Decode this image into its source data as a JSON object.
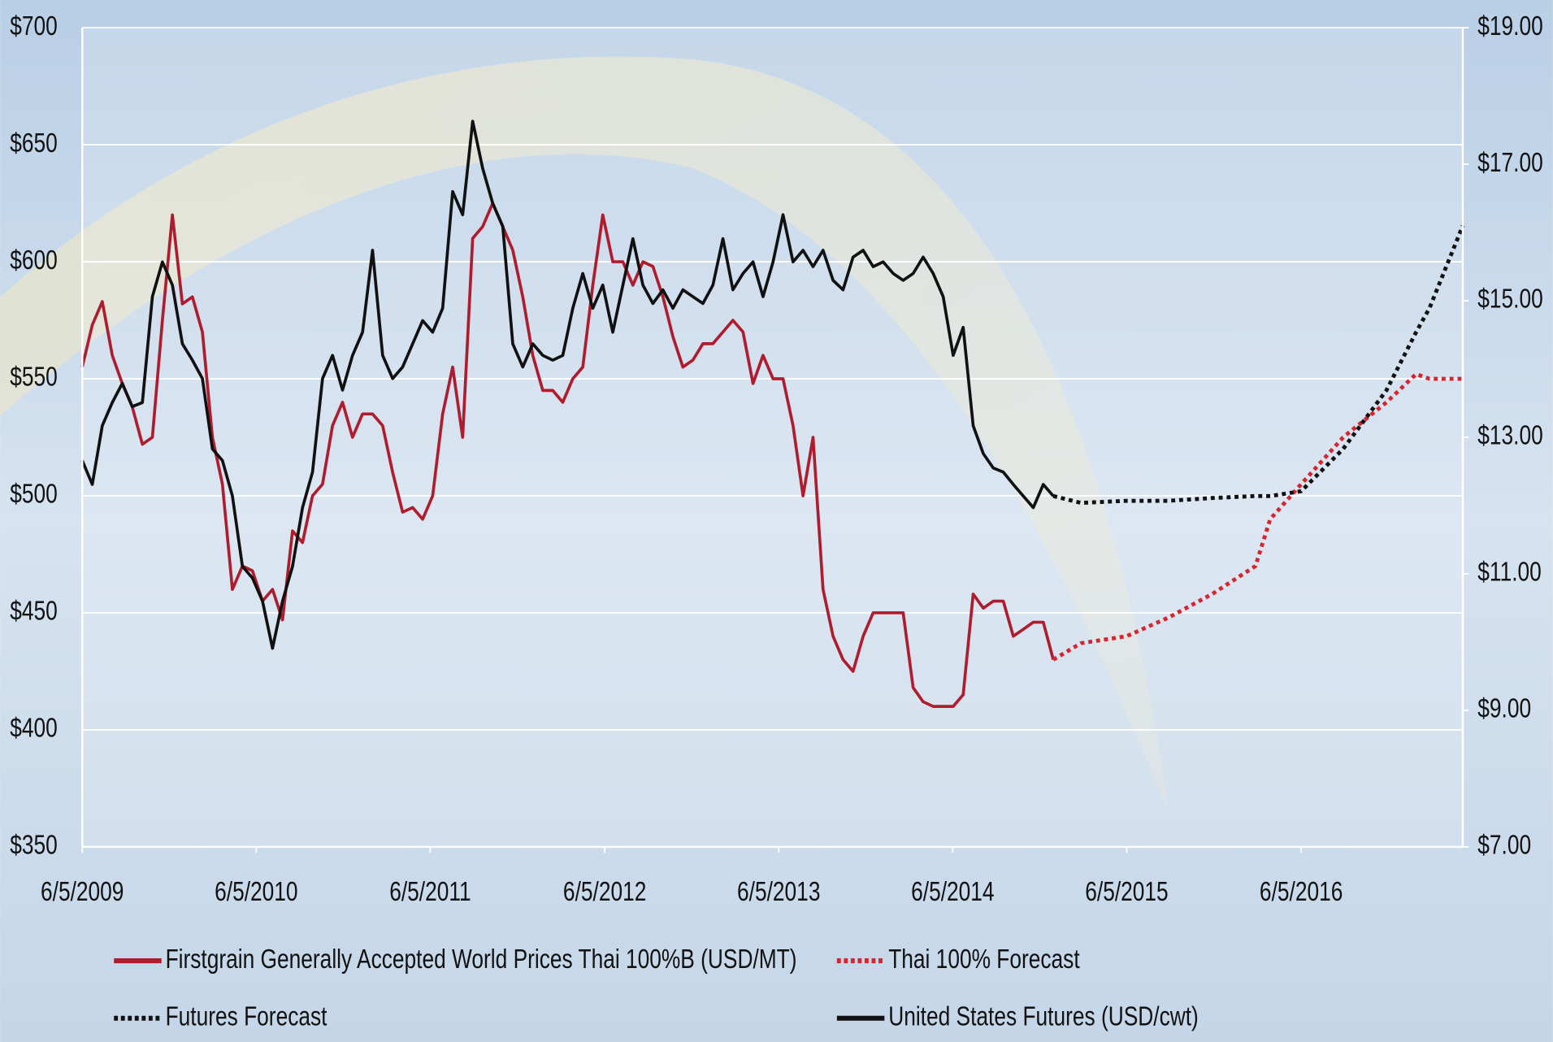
{
  "chart_data": {
    "type": "line",
    "xlim": [
      "2009-06-05",
      "2017-05-10"
    ],
    "xticks": [
      {
        "value": "2009-06-05",
        "label": "6/5/2009"
      },
      {
        "value": "2010-06-05",
        "label": "6/5/2010"
      },
      {
        "value": "2011-06-05",
        "label": "6/5/2011"
      },
      {
        "value": "2012-06-05",
        "label": "6/5/2012"
      },
      {
        "value": "2013-06-05",
        "label": "6/5/2013"
      },
      {
        "value": "2014-06-05",
        "label": "6/5/2014"
      },
      {
        "value": "2015-06-05",
        "label": "6/5/2015"
      },
      {
        "value": "2016-06-05",
        "label": "6/5/2016"
      }
    ],
    "ylim": [
      350,
      700
    ],
    "yticks": [
      {
        "value": 350,
        "label": "$350"
      },
      {
        "value": 400,
        "label": "$400"
      },
      {
        "value": 450,
        "label": "$450"
      },
      {
        "value": 500,
        "label": "$500"
      },
      {
        "value": 550,
        "label": "$550"
      },
      {
        "value": 600,
        "label": "$600"
      },
      {
        "value": 650,
        "label": "$650"
      },
      {
        "value": 700,
        "label": "$700"
      }
    ],
    "y2lim": [
      7,
      19
    ],
    "y2ticks": [
      {
        "value": 7,
        "label": "$7.00"
      },
      {
        "value": 9,
        "label": "$9.00"
      },
      {
        "value": 11,
        "label": "$11.00"
      },
      {
        "value": 13,
        "label": "$13.00"
      },
      {
        "value": 15,
        "label": "$15.00"
      },
      {
        "value": 17,
        "label": "$17.00"
      },
      {
        "value": 19,
        "label": "$19.00"
      }
    ],
    "grid": true,
    "legend": "bottom",
    "series": [
      {
        "name": "Firstgrain Generally Accepted World Prices Thai 100%B (USD/MT)",
        "color": "#b01c2e",
        "style": "solid",
        "axis": "y",
        "x": [
          "2009-06-05",
          "2009-06-26",
          "2009-07-17",
          "2009-08-07",
          "2009-08-28",
          "2009-09-18",
          "2009-10-09",
          "2009-10-30",
          "2009-11-20",
          "2009-12-11",
          "2010-01-01",
          "2010-01-22",
          "2010-02-12",
          "2010-03-05",
          "2010-03-26",
          "2010-04-16",
          "2010-05-07",
          "2010-05-28",
          "2010-06-18",
          "2010-07-09",
          "2010-07-30",
          "2010-08-20",
          "2010-09-10",
          "2010-10-01",
          "2010-10-22",
          "2010-11-12",
          "2010-12-03",
          "2010-12-24",
          "2011-01-14",
          "2011-02-04",
          "2011-02-25",
          "2011-03-18",
          "2011-04-08",
          "2011-04-29",
          "2011-05-20",
          "2011-06-10",
          "2011-07-01",
          "2011-07-22",
          "2011-08-12",
          "2011-09-02",
          "2011-09-23",
          "2011-10-14",
          "2011-11-04",
          "2011-11-25",
          "2011-12-16",
          "2012-01-06",
          "2012-01-27",
          "2012-02-17",
          "2012-03-09",
          "2012-03-30",
          "2012-04-20",
          "2012-05-11",
          "2012-06-01",
          "2012-06-22",
          "2012-07-13",
          "2012-08-03",
          "2012-08-24",
          "2012-09-14",
          "2012-10-05",
          "2012-10-26",
          "2012-11-16",
          "2012-12-07",
          "2012-12-28",
          "2013-01-18",
          "2013-02-08",
          "2013-03-01",
          "2013-03-22",
          "2013-04-12",
          "2013-05-03",
          "2013-05-24",
          "2013-06-14",
          "2013-07-05",
          "2013-07-26",
          "2013-08-16",
          "2013-09-06",
          "2013-09-27",
          "2013-10-18",
          "2013-11-08",
          "2013-11-29",
          "2013-12-20",
          "2014-01-10",
          "2014-01-31",
          "2014-02-21",
          "2014-03-14",
          "2014-04-04",
          "2014-04-25",
          "2014-05-16",
          "2014-06-06",
          "2014-06-27",
          "2014-07-18",
          "2014-08-08",
          "2014-08-29",
          "2014-09-19",
          "2014-10-10",
          "2014-10-31",
          "2014-11-21",
          "2014-12-12",
          "2015-01-02"
        ],
        "values": [
          555,
          573,
          583,
          560,
          548,
          538,
          522,
          525,
          575,
          620,
          582,
          585,
          570,
          525,
          505,
          460,
          470,
          468,
          455,
          460,
          447,
          485,
          480,
          500,
          505,
          530,
          540,
          525,
          535,
          535,
          530,
          510,
          493,
          495,
          490,
          500,
          535,
          555,
          525,
          610,
          615,
          625,
          615,
          605,
          585,
          560,
          545,
          545,
          540,
          550,
          555,
          590,
          620,
          600,
          600,
          590,
          600,
          598,
          585,
          568,
          555,
          558,
          565,
          565,
          570,
          575,
          570,
          548,
          560,
          550,
          550,
          530,
          500,
          525,
          460,
          440,
          430,
          425,
          440,
          450,
          450,
          450,
          450,
          418,
          412,
          410,
          410,
          410,
          415,
          458,
          452,
          455,
          455,
          440,
          443,
          446,
          446,
          430
        ]
      },
      {
        "name": "Thai 100% Forecast",
        "color": "#d8242f",
        "style": "dotted",
        "axis": "y",
        "x": [
          "2015-01-02",
          "2015-03-01",
          "2015-06-05",
          "2015-09-01",
          "2015-12-01",
          "2016-03-01",
          "2016-04-01",
          "2016-06-05",
          "2016-09-01",
          "2016-12-01",
          "2017-02-01",
          "2017-03-01",
          "2017-05-10"
        ],
        "values": [
          430,
          437,
          440,
          448,
          458,
          470,
          490,
          505,
          525,
          540,
          552,
          550,
          550
        ]
      },
      {
        "name": "Futures Forecast",
        "color": "#111111",
        "style": "dotted",
        "axis": "y2",
        "x": [
          "2015-01-02",
          "2015-03-01",
          "2015-06-05",
          "2015-09-01",
          "2015-12-01",
          "2016-03-01",
          "2016-04-01",
          "2016-06-05",
          "2016-09-01",
          "2016-12-01",
          "2017-02-01",
          "2017-03-01",
          "2017-05-10"
        ],
        "values": [
          12.14,
          12.04,
          12.07,
          12.07,
          12.11,
          12.14,
          12.14,
          12.21,
          12.83,
          13.69,
          14.54,
          14.89,
          16.1
        ]
      },
      {
        "name": "United States Futures (USD/cwt)",
        "color": "#111111",
        "style": "solid",
        "axis": "y2",
        "x": [
          "2009-06-05",
          "2009-06-26",
          "2009-07-17",
          "2009-08-07",
          "2009-08-28",
          "2009-09-18",
          "2009-10-09",
          "2009-10-30",
          "2009-11-20",
          "2009-12-11",
          "2010-01-01",
          "2010-01-22",
          "2010-02-12",
          "2010-03-05",
          "2010-03-26",
          "2010-04-16",
          "2010-05-07",
          "2010-05-28",
          "2010-06-18",
          "2010-07-09",
          "2010-07-30",
          "2010-08-20",
          "2010-09-10",
          "2010-10-01",
          "2010-10-22",
          "2010-11-12",
          "2010-12-03",
          "2010-12-24",
          "2011-01-14",
          "2011-02-04",
          "2011-02-25",
          "2011-03-18",
          "2011-04-08",
          "2011-04-29",
          "2011-05-20",
          "2011-06-10",
          "2011-07-01",
          "2011-07-22",
          "2011-08-12",
          "2011-09-02",
          "2011-09-23",
          "2011-10-14",
          "2011-11-04",
          "2011-11-25",
          "2011-12-16",
          "2012-01-06",
          "2012-01-27",
          "2012-02-17",
          "2012-03-09",
          "2012-03-30",
          "2012-04-20",
          "2012-05-11",
          "2012-06-01",
          "2012-06-22",
          "2012-07-13",
          "2012-08-03",
          "2012-08-24",
          "2012-09-14",
          "2012-10-05",
          "2012-10-26",
          "2012-11-16",
          "2012-12-07",
          "2012-12-28",
          "2013-01-18",
          "2013-02-08",
          "2013-03-01",
          "2013-03-22",
          "2013-04-12",
          "2013-05-03",
          "2013-05-24",
          "2013-06-14",
          "2013-07-05",
          "2013-07-26",
          "2013-08-16",
          "2013-09-06",
          "2013-09-27",
          "2013-10-18",
          "2013-11-08",
          "2013-11-29",
          "2013-12-20",
          "2014-01-10",
          "2014-01-31",
          "2014-02-21",
          "2014-03-14",
          "2014-04-04",
          "2014-04-25",
          "2014-05-16",
          "2014-06-06",
          "2014-06-27",
          "2014-07-18",
          "2014-08-08",
          "2014-08-29",
          "2014-09-19",
          "2014-10-10",
          "2014-10-31",
          "2014-11-21",
          "2014-12-12",
          "2015-01-02"
        ],
        "values": [
          12.66,
          12.31,
          13.17,
          13.51,
          13.79,
          13.45,
          13.51,
          15.06,
          15.57,
          15.23,
          14.37,
          14.13,
          13.86,
          12.83,
          12.66,
          12.14,
          11.11,
          10.94,
          10.6,
          9.91,
          10.6,
          11.11,
          11.97,
          12.49,
          13.86,
          14.2,
          13.69,
          14.2,
          14.54,
          15.74,
          14.2,
          13.86,
          14.03,
          14.37,
          14.71,
          14.54,
          14.89,
          16.6,
          16.26,
          17.63,
          16.94,
          16.43,
          16.09,
          14.37,
          14.03,
          14.37,
          14.2,
          14.13,
          14.2,
          14.89,
          15.4,
          14.89,
          15.23,
          14.54,
          15.23,
          15.91,
          15.23,
          14.96,
          15.16,
          14.89,
          15.16,
          15.06,
          14.96,
          15.23,
          15.91,
          15.16,
          15.4,
          15.57,
          15.06,
          15.57,
          16.26,
          15.57,
          15.74,
          15.5,
          15.74,
          15.3,
          15.16,
          15.64,
          15.74,
          15.5,
          15.57,
          15.4,
          15.3,
          15.4,
          15.64,
          15.4,
          15.06,
          14.2,
          14.61,
          13.17,
          12.76,
          12.55,
          12.49,
          12.31,
          12.14,
          11.97,
          12.31,
          12.14
        ]
      }
    ]
  }
}
